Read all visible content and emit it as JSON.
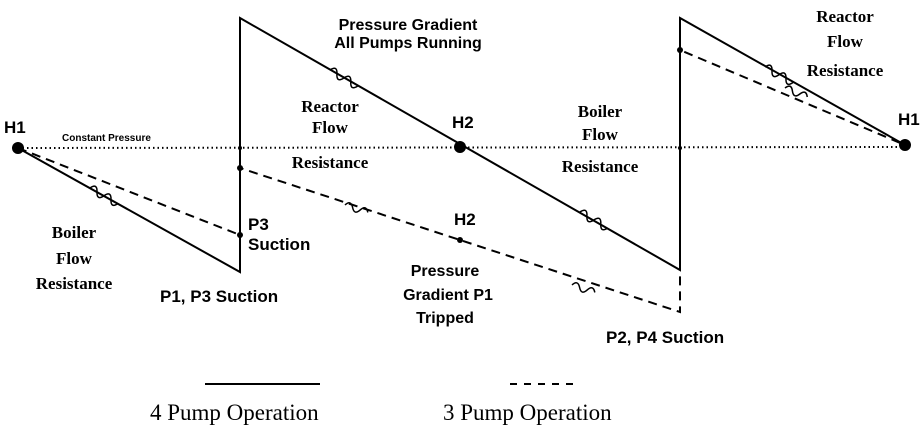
{
  "labels": {
    "h1_left": "H1",
    "h2_top": "H2",
    "h1_right": "H1",
    "constant_pressure": "Constant Pressure",
    "all_pumps": [
      "Pressure Gradient",
      "All Pumps Running"
    ],
    "reactor_mid": [
      "Reactor",
      "Flow",
      "Resistance"
    ],
    "boiler_mid": [
      "Boiler",
      "Flow",
      "Resistance"
    ],
    "reactor_right": [
      "Reactor",
      "Flow",
      "Resistance"
    ],
    "boiler_left": [
      "Boiler",
      "Flow",
      "Resistance"
    ],
    "p3_suction": [
      "P3",
      "Suction"
    ],
    "p1_p3_suction": "P1, P3 Suction",
    "h2_bottom": "H2",
    "p1_tripped": [
      "Pressure",
      "Gradient  P1",
      "Tripped"
    ],
    "p2_p4_suction": "P2, P4 Suction"
  },
  "legend": [
    "4 Pump Operation",
    "3 Pump Operation"
  ]
}
